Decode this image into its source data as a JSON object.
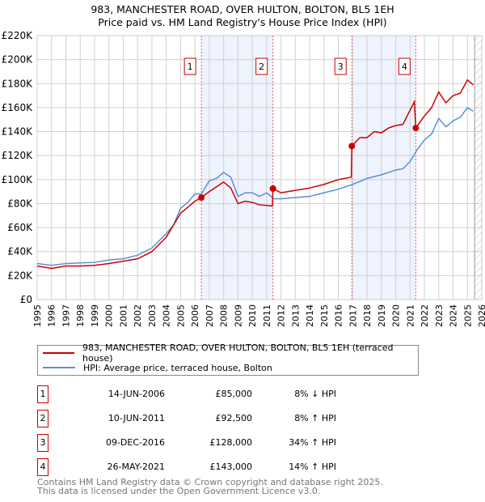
{
  "chart_data": {
    "type": "line",
    "title": "983, MANCHESTER ROAD, OVER HULTON, BOLTON, BL5 1EH",
    "subtitle": "Price paid vs. HM Land Registry's House Price Index (HPI)",
    "xlim": [
      1995,
      2026
    ],
    "ylim": [
      0,
      220000
    ],
    "yticks": [
      0,
      20000,
      40000,
      60000,
      80000,
      100000,
      120000,
      140000,
      160000,
      180000,
      200000,
      220000
    ],
    "ytick_labels": [
      "£0",
      "£20K",
      "£40K",
      "£60K",
      "£80K",
      "£100K",
      "£120K",
      "£140K",
      "£160K",
      "£180K",
      "£200K",
      "£220K"
    ],
    "xticks": [
      1995,
      1996,
      1997,
      1998,
      1999,
      2000,
      2001,
      2002,
      2003,
      2004,
      2005,
      2006,
      2007,
      2008,
      2009,
      2010,
      2011,
      2012,
      2013,
      2014,
      2015,
      2016,
      2017,
      2018,
      2019,
      2020,
      2021,
      2022,
      2023,
      2024,
      2025,
      2026
    ],
    "grid": true,
    "forecast_hatch_from": 2025.5,
    "series": [
      {
        "name": "983, MANCHESTER ROAD, OVER HULTON, BOLTON, BL5 1EH (terraced house)",
        "color": "#cc0000",
        "x": [
          1995,
          1996,
          1997,
          1998,
          1999,
          2000,
          2001,
          2002,
          2003,
          2004,
          2004.5,
          2005,
          2005.5,
          2006,
          2006.45,
          2007,
          2007.5,
          2008,
          2008.5,
          2009,
          2009.5,
          2010,
          2010.5,
          2011.4,
          2011.44,
          2012,
          2013,
          2014,
          2015,
          2016,
          2016.9,
          2016.94,
          2017.5,
          2018,
          2018.5,
          2019,
          2019.5,
          2020,
          2020.5,
          2021.3,
          2021.4,
          2022,
          2022.5,
          2023,
          2023.5,
          2024,
          2024.5,
          2025,
          2025.4
        ],
        "y": [
          28000,
          26000,
          28000,
          28000,
          28500,
          30000,
          32000,
          34000,
          40000,
          52000,
          62000,
          72000,
          77000,
          82000,
          85000,
          90000,
          94000,
          98000,
          93000,
          80000,
          82000,
          81000,
          79000,
          78000,
          92500,
          89000,
          91000,
          93000,
          96000,
          100000,
          102000,
          128000,
          135000,
          135000,
          140000,
          139000,
          143000,
          145000,
          146000,
          165000,
          143000,
          153000,
          160000,
          173000,
          164000,
          170000,
          172000,
          183000,
          179000
        ]
      },
      {
        "name": "HPI: Average price, terraced house, Bolton",
        "color": "#5b8fd4",
        "x": [
          1995,
          1996,
          1997,
          1998,
          1999,
          2000,
          2001,
          2002,
          2003,
          2004,
          2004.5,
          2005,
          2005.5,
          2006,
          2006.45,
          2007,
          2007.5,
          2008,
          2008.5,
          2009,
          2009.5,
          2010,
          2010.5,
          2011,
          2011.5,
          2012,
          2013,
          2014,
          2015,
          2016,
          2017,
          2018,
          2019,
          2020,
          2020.5,
          2021,
          2021.5,
          2022,
          2022.5,
          2023,
          2023.5,
          2024,
          2024.5,
          2025,
          2025.4
        ],
        "y": [
          30000,
          28500,
          30000,
          30500,
          31000,
          33000,
          34000,
          37000,
          43000,
          55000,
          62000,
          76000,
          81000,
          88000,
          88000,
          99000,
          101000,
          106000,
          102000,
          86000,
          89000,
          89000,
          86000,
          89000,
          84000,
          84000,
          85000,
          86000,
          89000,
          92000,
          96000,
          101000,
          104000,
          108000,
          109000,
          115000,
          125000,
          133000,
          138000,
          151000,
          144000,
          149000,
          152000,
          160000,
          157000
        ]
      }
    ],
    "sales": [
      {
        "n": "1",
        "x": 2006.45,
        "date": "14-JUN-2006",
        "price": 85000,
        "price_label": "£85,000",
        "hpi": "8% ↓ HPI"
      },
      {
        "n": "2",
        "x": 2011.44,
        "date": "10-JUN-2011",
        "price": 92500,
        "price_label": "£92,500",
        "hpi": "8% ↑ HPI"
      },
      {
        "n": "3",
        "x": 2016.94,
        "date": "09-DEC-2016",
        "price": 128000,
        "price_label": "£128,000",
        "hpi": "34% ↑ HPI"
      },
      {
        "n": "4",
        "x": 2021.4,
        "date": "26-MAY-2021",
        "price": 143000,
        "price_label": "£143,000",
        "hpi": "14% ↑ HPI"
      }
    ]
  },
  "footer": {
    "line1": "Contains HM Land Registry data © Crown copyright and database right 2025.",
    "line2": "This data is licensed under the Open Government Licence v3.0."
  }
}
